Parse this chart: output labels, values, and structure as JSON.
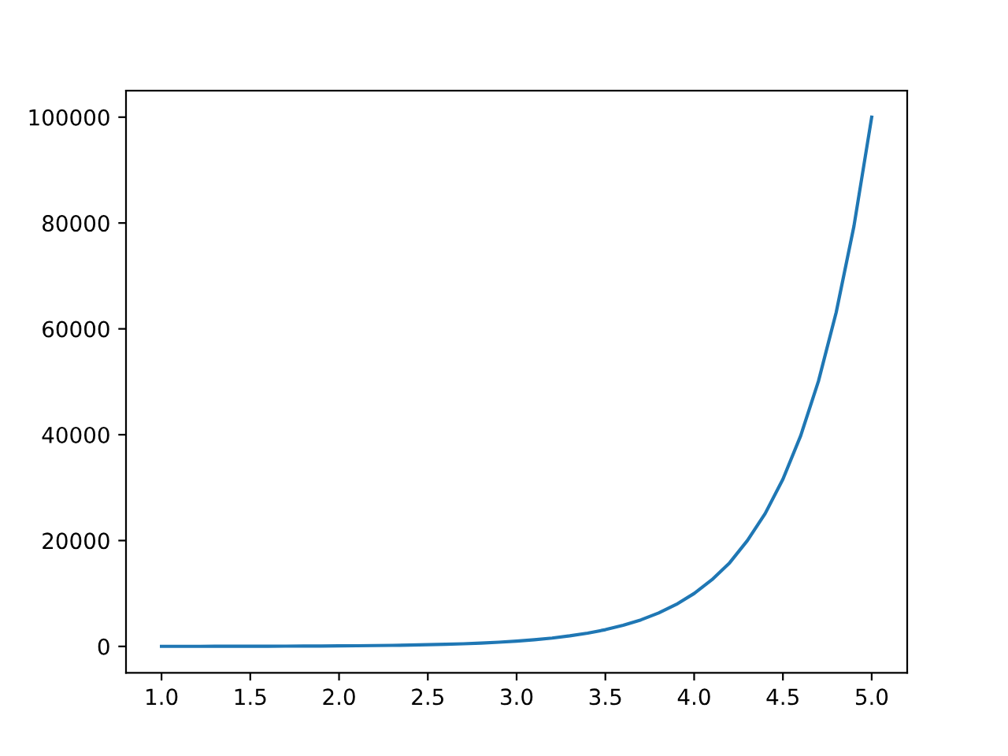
{
  "chart_data": {
    "type": "line",
    "x": [
      1.0,
      1.1,
      1.2,
      1.3,
      1.4,
      1.5,
      1.6,
      1.7,
      1.8,
      1.9,
      2.0,
      2.1,
      2.2,
      2.3,
      2.4,
      2.5,
      2.6,
      2.7,
      2.8,
      2.9,
      3.0,
      3.1,
      3.2,
      3.3,
      3.4,
      3.5,
      3.6,
      3.7,
      3.8,
      3.9,
      4.0,
      4.1,
      4.2,
      4.3,
      4.4,
      4.5,
      4.6,
      4.7,
      4.8,
      4.9,
      5.0
    ],
    "series": [
      {
        "color": "#1f77b4",
        "values": [
          10,
          13,
          16,
          20,
          25,
          32,
          40,
          50,
          63,
          79,
          100,
          126,
          158,
          200,
          251,
          316,
          398,
          501,
          631,
          794,
          1000,
          1260,
          1580,
          2000,
          2510,
          3160,
          3980,
          5010,
          6310,
          7940,
          10000,
          12600,
          15800,
          20000,
          25100,
          31600,
          39800,
          50100,
          63100,
          79400,
          100000
        ]
      }
    ],
    "xlim": [
      0.8,
      5.2
    ],
    "xticks": [
      {
        "value": 1,
        "label": "1.0"
      },
      {
        "value": 1.5,
        "label": "1.5"
      },
      {
        "value": 2,
        "label": "2.0"
      },
      {
        "value": 2.5,
        "label": "2.5"
      },
      {
        "value": 3,
        "label": "3.0"
      },
      {
        "value": 3.5,
        "label": "3.5"
      },
      {
        "value": 4,
        "label": "4.0"
      },
      {
        "value": 4.5,
        "label": "4.5"
      },
      {
        "value": 5,
        "label": "5.0"
      }
    ],
    "ylim": [
      -4995,
      104995
    ],
    "yticks": [
      0,
      20000,
      40000,
      60000,
      80000,
      100000
    ],
    "grid": false,
    "legend": false
  }
}
